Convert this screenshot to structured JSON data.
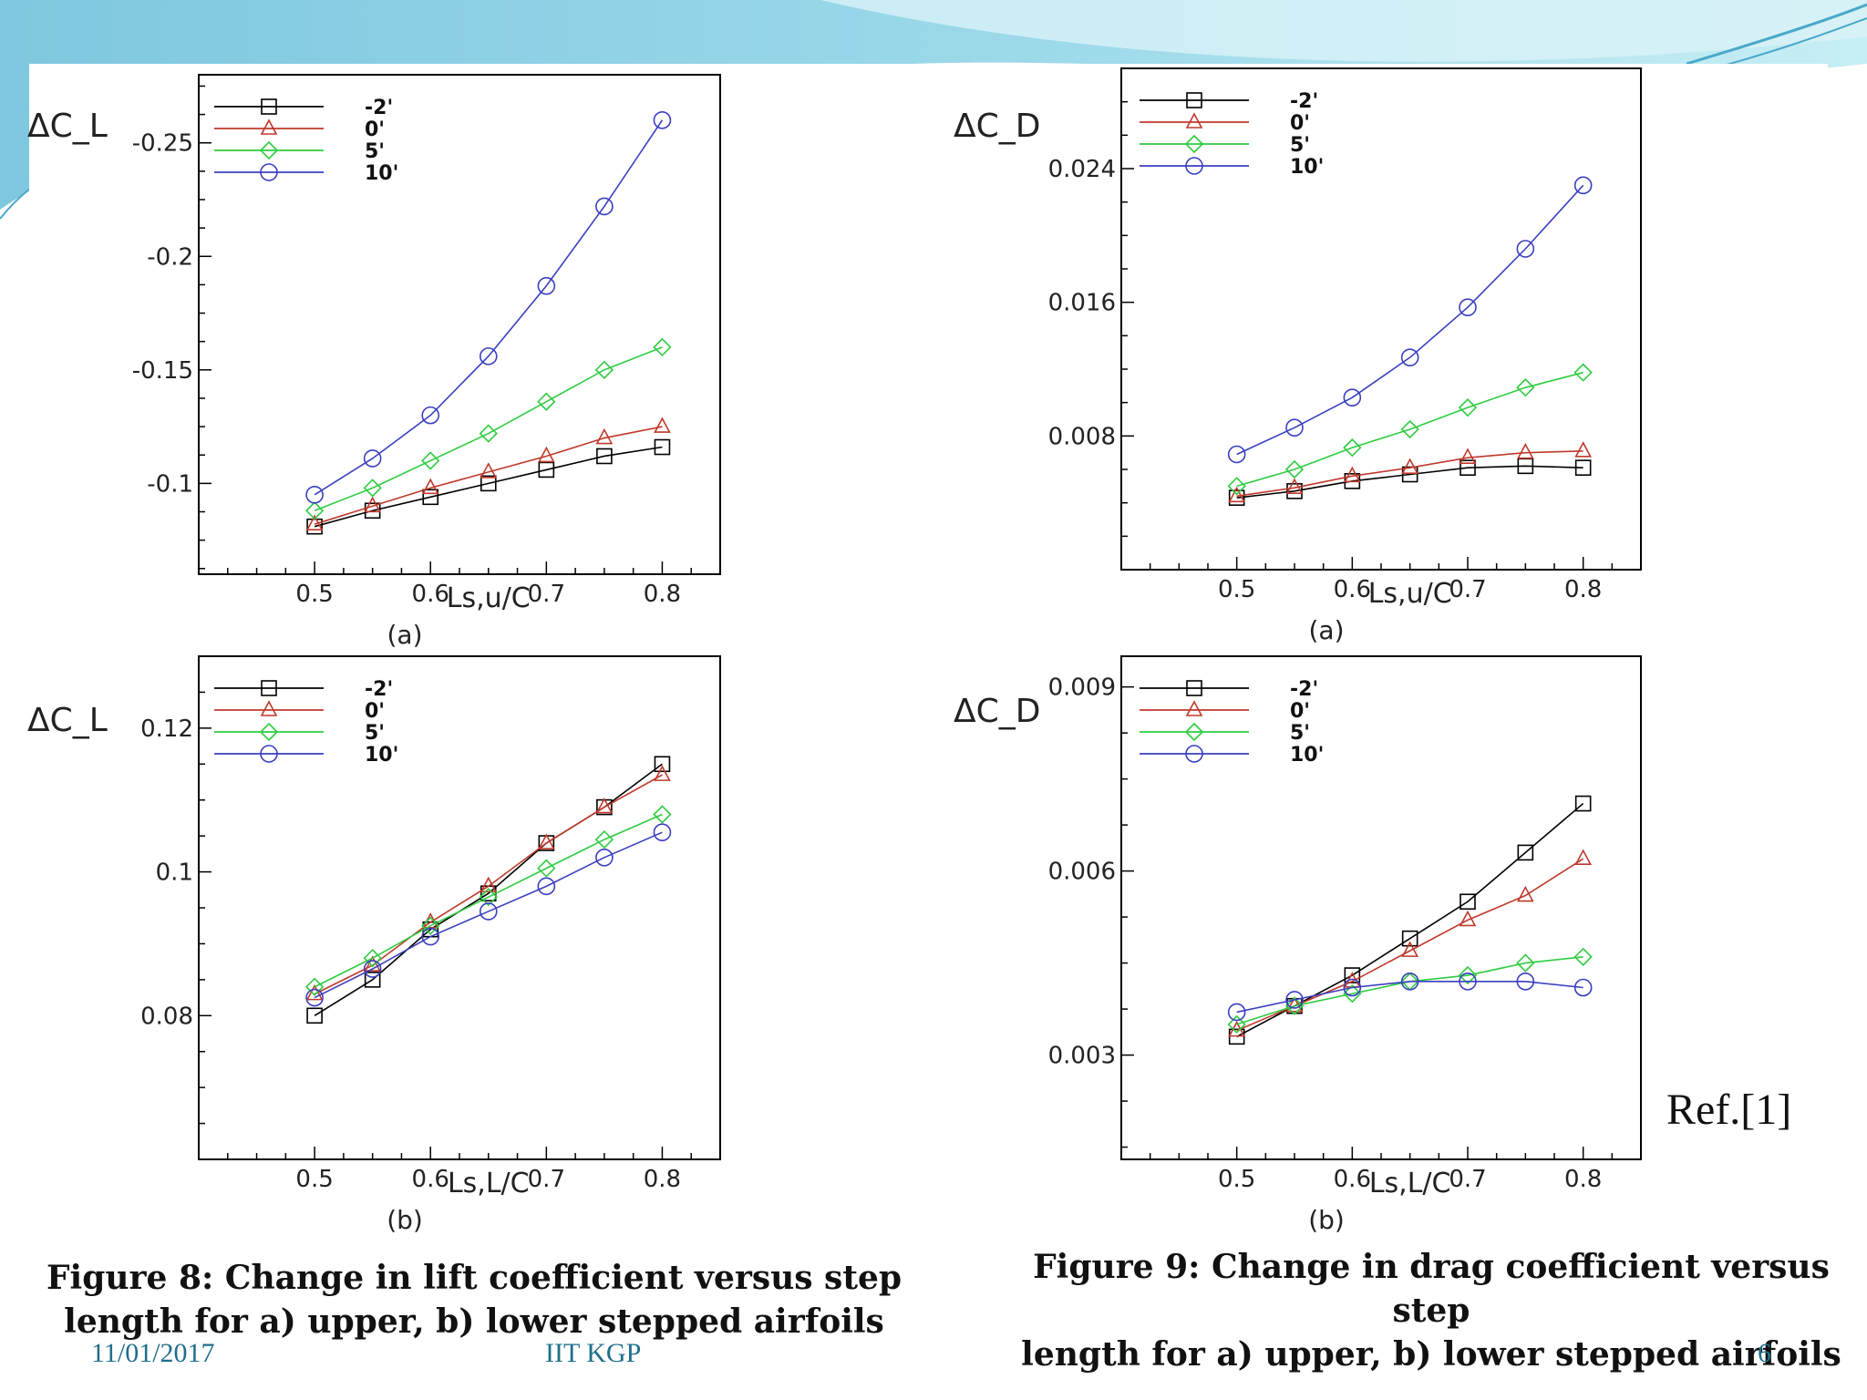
{
  "slide": {
    "caption_left": [
      "Figure 8: Change in lift coefficient versus step",
      "length for a) upper, b) lower stepped airfoils"
    ],
    "caption_right": [
      "Figure 9: Change in drag coefficient versus step",
      "length for a) upper, b) lower stepped airfoils"
    ],
    "footer_date": "11/01/2017",
    "footer_org": "IIT KGP",
    "page_number": "6",
    "reference": "Ref.[1]",
    "colors": {
      "accent_teal": "#5fbcd3",
      "footer_text": "#1f6f8b"
    }
  },
  "chart_data": [
    {
      "type": "line",
      "ylabel": "ΔC_L",
      "xlabel": "Ls,u/C",
      "sublabel": "(a)",
      "xlim": [
        0.4,
        0.85
      ],
      "ylim": [
        -0.06,
        -0.28
      ],
      "xticks": [
        0.5,
        0.6,
        0.7,
        0.8
      ],
      "yticks": [
        -0.1,
        -0.15,
        -0.2,
        -0.25
      ],
      "legend": "top-left",
      "x": [
        0.5,
        0.55,
        0.6,
        0.65,
        0.7,
        0.75,
        0.8
      ],
      "series": [
        {
          "name": "-2'",
          "marker": "square",
          "color": "#000000",
          "values": [
            -0.081,
            -0.088,
            -0.094,
            -0.1,
            -0.106,
            -0.112,
            -0.116
          ]
        },
        {
          "name": "0'",
          "marker": "triangle",
          "color": "#c0392b",
          "values": [
            -0.082,
            -0.09,
            -0.098,
            -0.105,
            -0.112,
            -0.12,
            -0.125
          ]
        },
        {
          "name": "5'",
          "marker": "diamond",
          "color": "#2ecc40",
          "values": [
            -0.088,
            -0.098,
            -0.11,
            -0.122,
            -0.136,
            -0.15,
            -0.16
          ]
        },
        {
          "name": "10'",
          "marker": "circle",
          "color": "#3a3fbf",
          "values": [
            -0.095,
            -0.111,
            -0.13,
            -0.156,
            -0.187,
            -0.222,
            -0.26
          ]
        }
      ]
    },
    {
      "type": "line",
      "ylabel": "ΔC_L",
      "xlabel": "Ls,L/C",
      "sublabel": "(b)",
      "xlim": [
        0.4,
        0.85
      ],
      "ylim": [
        0.06,
        0.13
      ],
      "xticks": [
        0.5,
        0.6,
        0.7,
        0.8
      ],
      "yticks": [
        0.08,
        0.1,
        0.12
      ],
      "legend": "top-left",
      "x": [
        0.5,
        0.55,
        0.6,
        0.65,
        0.7,
        0.75,
        0.8
      ],
      "series": [
        {
          "name": "-2'",
          "marker": "square",
          "color": "#000000",
          "values": [
            0.08,
            0.085,
            0.092,
            0.097,
            0.104,
            0.109,
            0.115
          ]
        },
        {
          "name": "0'",
          "marker": "triangle",
          "color": "#c0392b",
          "values": [
            0.083,
            0.087,
            0.093,
            0.098,
            0.104,
            0.109,
            0.1135
          ]
        },
        {
          "name": "5'",
          "marker": "diamond",
          "color": "#2ecc40",
          "values": [
            0.084,
            0.088,
            0.0925,
            0.0965,
            0.1005,
            0.1045,
            0.108
          ]
        },
        {
          "name": "10'",
          "marker": "circle",
          "color": "#3a3fbf",
          "values": [
            0.0825,
            0.0865,
            0.091,
            0.0945,
            0.098,
            0.102,
            0.1055
          ]
        }
      ]
    },
    {
      "type": "line",
      "ylabel": "ΔC_D",
      "xlabel": "Ls,u/C",
      "sublabel": "(a)",
      "xlim": [
        0.4,
        0.85
      ],
      "ylim": [
        0,
        0.03
      ],
      "xticks": [
        0.5,
        0.6,
        0.7,
        0.8
      ],
      "yticks": [
        0.008,
        0.016,
        0.024
      ],
      "legend": "top-left",
      "x": [
        0.5,
        0.55,
        0.6,
        0.65,
        0.7,
        0.75,
        0.8
      ],
      "series": [
        {
          "name": "-2'",
          "marker": "square",
          "color": "#000000",
          "values": [
            0.0043,
            0.0047,
            0.0053,
            0.0057,
            0.0061,
            0.0062,
            0.0061
          ]
        },
        {
          "name": "0'",
          "marker": "triangle",
          "color": "#c0392b",
          "values": [
            0.0044,
            0.0049,
            0.0056,
            0.0061,
            0.0067,
            0.007,
            0.0071
          ]
        },
        {
          "name": "5'",
          "marker": "diamond",
          "color": "#2ecc40",
          "values": [
            0.005,
            0.006,
            0.0073,
            0.0084,
            0.0097,
            0.0109,
            0.0118
          ]
        },
        {
          "name": "10'",
          "marker": "circle",
          "color": "#3a3fbf",
          "values": [
            0.0069,
            0.0085,
            0.0103,
            0.0127,
            0.0157,
            0.0192,
            0.023
          ]
        }
      ]
    },
    {
      "type": "line",
      "ylabel": "ΔC_D",
      "xlabel": "Ls,L/C",
      "sublabel": "(b)",
      "xlim": [
        0.4,
        0.85
      ],
      "ylim": [
        0.0013,
        0.0095
      ],
      "xticks": [
        0.5,
        0.6,
        0.7,
        0.8
      ],
      "yticks": [
        0.003,
        0.006,
        0.009
      ],
      "legend": "top-left",
      "x": [
        0.5,
        0.55,
        0.6,
        0.65,
        0.7,
        0.75,
        0.8
      ],
      "series": [
        {
          "name": "-2'",
          "marker": "square",
          "color": "#000000",
          "values": [
            0.0033,
            0.0038,
            0.0043,
            0.0049,
            0.0055,
            0.0063,
            0.0071
          ]
        },
        {
          "name": "0'",
          "marker": "triangle",
          "color": "#c0392b",
          "values": [
            0.0034,
            0.0038,
            0.0042,
            0.0047,
            0.0052,
            0.0056,
            0.0062
          ]
        },
        {
          "name": "5'",
          "marker": "diamond",
          "color": "#2ecc40",
          "values": [
            0.0035,
            0.0038,
            0.004,
            0.0042,
            0.0043,
            0.0045,
            0.0046
          ]
        },
        {
          "name": "10'",
          "marker": "circle",
          "color": "#3a3fbf",
          "values": [
            0.0037,
            0.0039,
            0.0041,
            0.0042,
            0.0042,
            0.0042,
            0.0041
          ]
        }
      ]
    }
  ]
}
